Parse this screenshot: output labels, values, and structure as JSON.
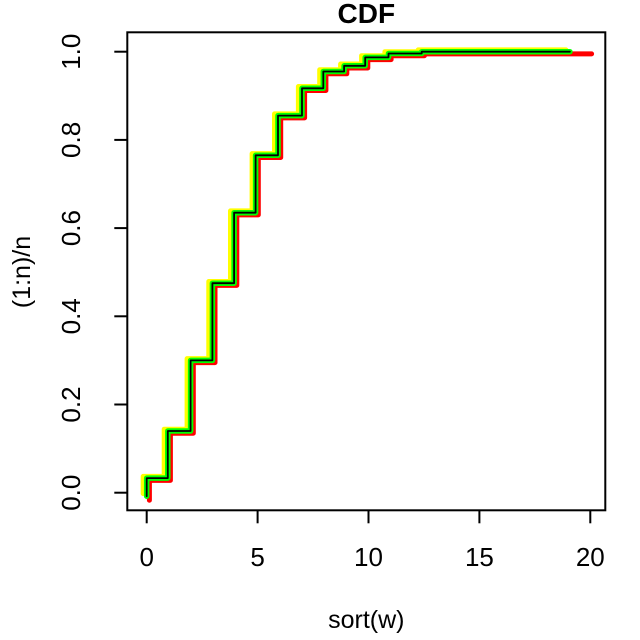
{
  "figure": {
    "background_color": "#FFFFFF",
    "axis_color": "#000000"
  },
  "chart_data": {
    "type": "line",
    "subtype": "step-ecdf",
    "title": "CDF",
    "xlabel": "sort(w)",
    "ylabel": "(1:n)/n",
    "xlim": [
      0,
      20
    ],
    "ylim": [
      0.0,
      1.0
    ],
    "grid": false,
    "legend": "none",
    "x_ticks": [
      {
        "value": 0,
        "label": "0"
      },
      {
        "value": 5,
        "label": "5"
      },
      {
        "value": 10,
        "label": "10"
      },
      {
        "value": 15,
        "label": "15"
      },
      {
        "value": 20,
        "label": "20"
      }
    ],
    "y_ticks": [
      {
        "value": 0.0,
        "label": "0.0"
      },
      {
        "value": 0.2,
        "label": "0.2"
      },
      {
        "value": 0.4,
        "label": "0.4"
      },
      {
        "value": 0.6,
        "label": "0.6"
      },
      {
        "value": 0.8,
        "label": "0.8"
      },
      {
        "value": 1.0,
        "label": "1.0"
      }
    ],
    "step_x": [
      0,
      0.95,
      1.98,
      2.96,
      3.94,
      4.91,
      5.92,
      7.0,
      7.96,
      8.9,
      9.85,
      10.9,
      12.4
    ],
    "step_y": [
      0.033,
      0.14,
      0.3,
      0.475,
      0.635,
      0.765,
      0.855,
      0.917,
      0.955,
      0.968,
      0.987,
      0.996,
      1.0
    ],
    "series": [
      {
        "name": "red-curve",
        "color": "#FF0000",
        "width": 5.0,
        "dx": 0.12,
        "dy": -0.005,
        "y_start": -0.012,
        "x_end": 20.06
      },
      {
        "name": "yellow-curve",
        "color": "#FFFF00",
        "width": 5.0,
        "dx": -0.16,
        "dy": 0.004,
        "y_start": -0.006,
        "x_end": 18.9
      },
      {
        "name": "green-curve",
        "color": "#00FF00",
        "width": 5.5,
        "dx": 0.0,
        "dy": 0.0,
        "y_start": -0.008,
        "x_end": 19.08
      },
      {
        "name": "black-curve",
        "color": "#000000",
        "width": 1.8,
        "dx": 0.0,
        "dy": 0.0,
        "y_start": -0.008,
        "x_end": 19.08
      }
    ]
  }
}
